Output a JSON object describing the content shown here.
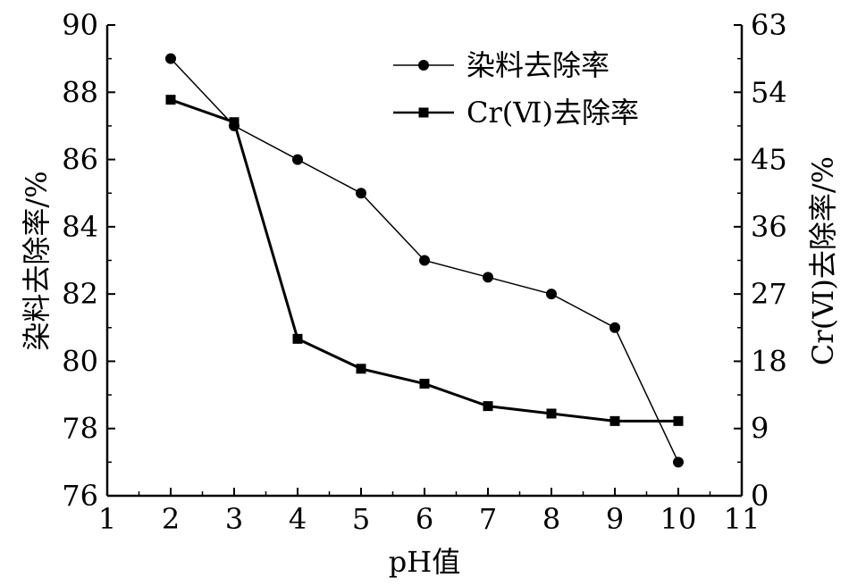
{
  "chart_data": {
    "type": "line",
    "title": "",
    "xlabel": "pH值",
    "ylabel_left": "染料去除率/%",
    "ylabel_right": "Cr(Ⅵ)去除率/%",
    "xlim": [
      1,
      11
    ],
    "ylim_left": [
      76,
      90
    ],
    "ylim_right": [
      0,
      63
    ],
    "x_ticks": [
      1,
      2,
      3,
      4,
      5,
      6,
      7,
      8,
      9,
      10,
      11
    ],
    "y_left_ticks": [
      76,
      78,
      80,
      82,
      84,
      86,
      88,
      90
    ],
    "y_right_ticks": [
      0,
      9,
      18,
      27,
      36,
      45,
      54,
      63
    ],
    "grid": false,
    "legend_position": "top-right",
    "series": [
      {
        "name": "染料去除率",
        "axis": "left",
        "marker": "circle",
        "x": [
          2,
          3,
          4,
          5,
          6,
          7,
          8,
          9,
          10
        ],
        "values": [
          89,
          87,
          86,
          85,
          83,
          82.5,
          82,
          81,
          77
        ]
      },
      {
        "name": "Cr(Ⅵ)去除率",
        "axis": "right",
        "marker": "square",
        "x": [
          2,
          3,
          4,
          5,
          6,
          7,
          8,
          9,
          10
        ],
        "values": [
          53,
          50,
          21,
          17,
          15,
          12,
          11,
          10,
          10
        ]
      }
    ]
  }
}
